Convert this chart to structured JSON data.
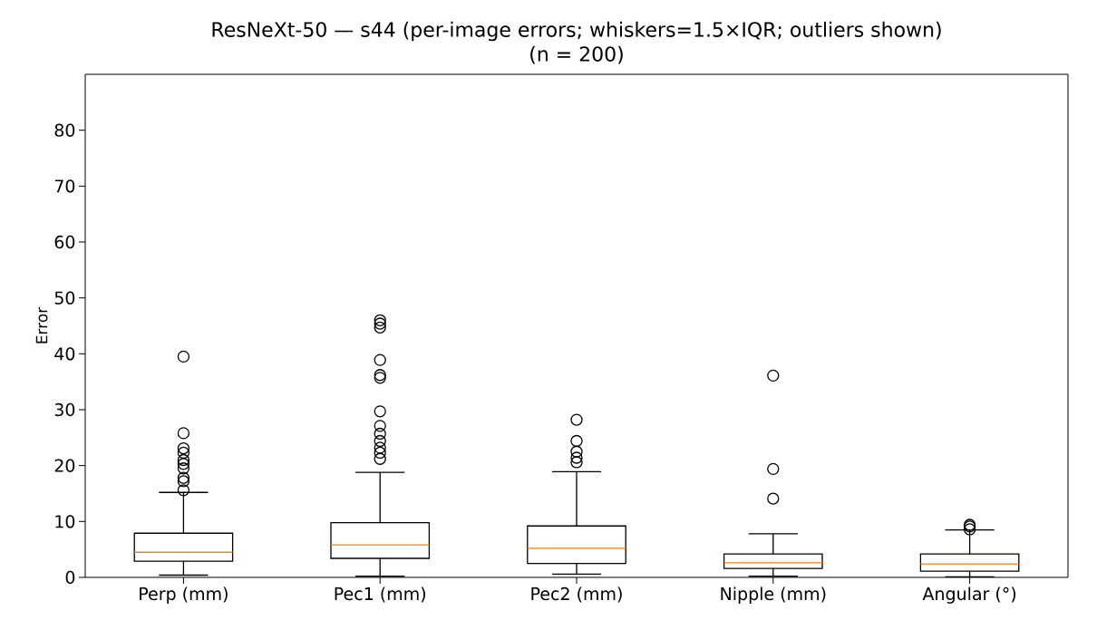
{
  "chart_data": {
    "type": "box",
    "title": "ResNeXt-50 — s44 (per-image errors; whiskers=1.5×IQR; outliers shown)",
    "subtitle": "(n = 200)",
    "ylabel": "Error",
    "categories": [
      "Perp (mm)",
      "Pec1 (mm)",
      "Pec2 (mm)",
      "Nipple (mm)",
      "Angular (°)"
    ],
    "color": "#000000",
    "marker": "circle",
    "grid": false,
    "ylim": [
      0,
      90
    ],
    "yticks": [
      0,
      10,
      20,
      30,
      40,
      50,
      60,
      70,
      80
    ],
    "boxes": [
      {
        "low": 0.4,
        "q1": 2.9,
        "median": 4.5,
        "q3": 7.9,
        "high": 15.2,
        "outliers": [
          15.6,
          17.2,
          17.8,
          19.5,
          20.3,
          21.0,
          22.3,
          23.1,
          25.8,
          39.5
        ]
      },
      {
        "low": 0.2,
        "q1": 3.4,
        "median": 5.8,
        "q3": 9.8,
        "high": 18.8,
        "outliers": [
          21.2,
          22.3,
          23.2,
          24.4,
          25.7,
          27.1,
          29.7,
          35.7,
          36.2,
          38.9,
          44.7,
          45.4,
          46.0
        ]
      },
      {
        "low": 0.6,
        "q1": 2.5,
        "median": 5.2,
        "q3": 9.2,
        "high": 18.9,
        "outliers": [
          20.6,
          21.4,
          22.5,
          24.4,
          28.2
        ]
      },
      {
        "low": 0.2,
        "q1": 1.6,
        "median": 2.6,
        "q3": 4.2,
        "high": 7.8,
        "outliers": [
          14.1,
          19.4,
          36.1
        ]
      },
      {
        "low": 0.1,
        "q1": 1.1,
        "median": 2.4,
        "q3": 4.2,
        "high": 8.5,
        "outliers": [
          8.6,
          9.1,
          9.4
        ]
      }
    ]
  }
}
